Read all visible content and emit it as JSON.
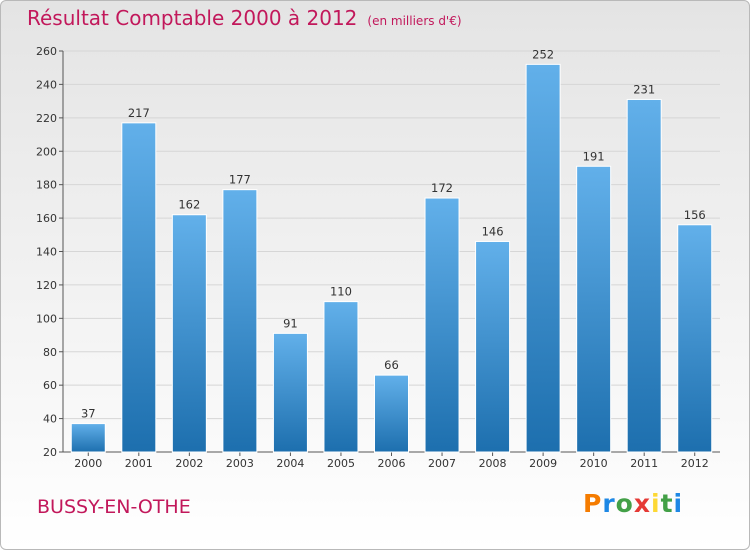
{
  "chart_data": {
    "type": "bar",
    "title": "Résultat Comptable 2000 à 2012",
    "unit_label": "(en milliers d'€)",
    "categories": [
      "2000",
      "2001",
      "2002",
      "2003",
      "2004",
      "2005",
      "2006",
      "2007",
      "2008",
      "2009",
      "2010",
      "2011",
      "2012"
    ],
    "values": [
      37,
      217,
      162,
      177,
      91,
      110,
      66,
      172,
      146,
      252,
      191,
      231,
      156
    ],
    "ylim": [
      20,
      260
    ],
    "yticks": [
      20,
      40,
      60,
      80,
      100,
      120,
      140,
      160,
      180,
      200,
      220,
      240,
      260
    ],
    "xlabel": "",
    "ylabel": "",
    "grid": true,
    "legend": "none"
  },
  "location": "BUSSY-EN-OTHE",
  "brand": {
    "letters": [
      "P",
      "r",
      "o",
      "x",
      "i",
      "t",
      "i"
    ],
    "letter_colors": [
      "#f57c00",
      "#1e88e5",
      "#43a047",
      "#e53935",
      "#fdd835",
      "#43a047",
      "#1e88e5"
    ]
  },
  "colors": {
    "accent": "#c2185b",
    "bar_top": "#62b0ea",
    "bar_bottom": "#1d6fae",
    "grid": "#d6d6d6"
  }
}
